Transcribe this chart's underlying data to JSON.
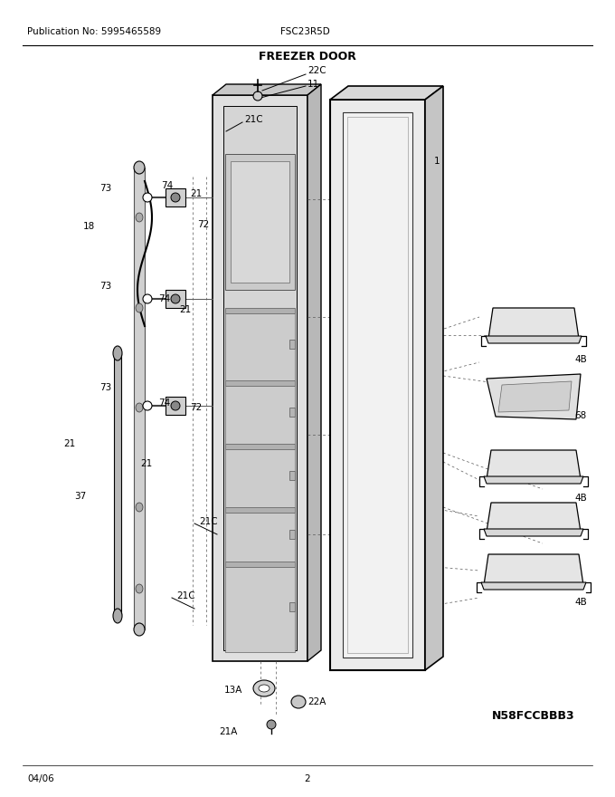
{
  "title": "FREEZER DOOR",
  "pub_no": "Publication No: 5995465589",
  "model": "FSC23R5D",
  "diagram_id": "N58FCCBBB3",
  "date": "04/06",
  "page": "2",
  "bg_color": "#ffffff",
  "lc": "#000000",
  "gray1": "#cccccc",
  "gray2": "#aaaaaa",
  "gray3": "#e8e8e8",
  "gray4": "#bbbbbb"
}
